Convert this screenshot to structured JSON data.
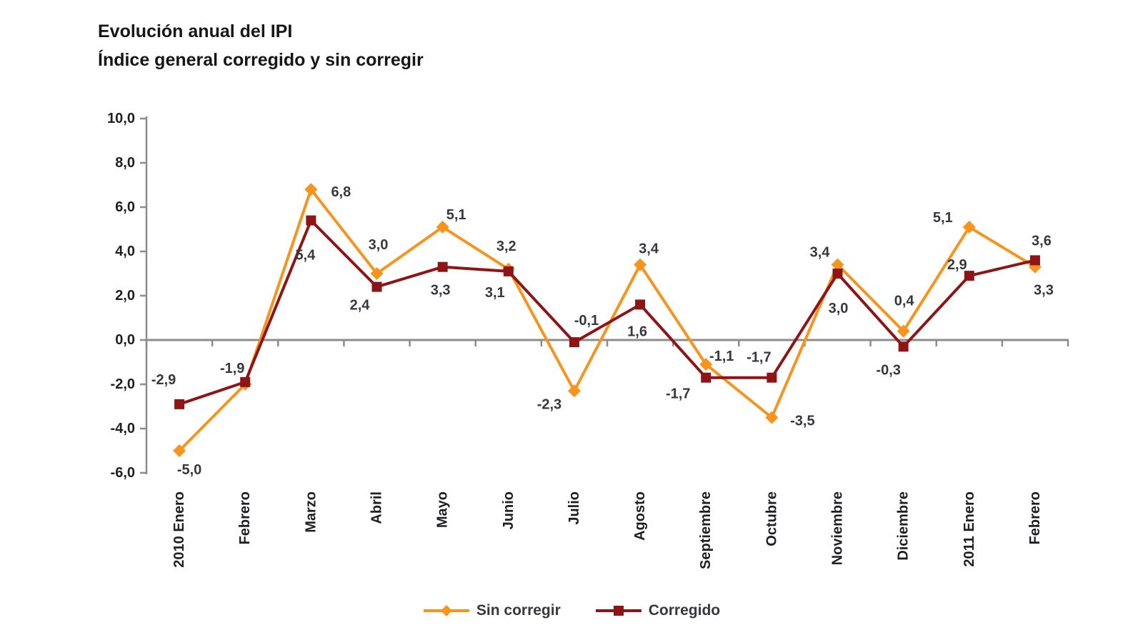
{
  "title": {
    "line1": "Evolución anual del IPI",
    "line2": "Índice general corregido y sin corregir"
  },
  "chart_data": {
    "type": "line",
    "title": "Evolución anual del IPI — Índice general corregido y sin corregir",
    "categories": [
      "2010 Enero",
      "Febrero",
      "Marzo",
      "Abril",
      "Mayo",
      "Junio",
      "Julio",
      "Agosto",
      "Septiembre",
      "Octubre",
      "Noviembre",
      "Diciembre",
      "2011 Enero",
      "Febrero"
    ],
    "ylim": [
      -6.0,
      10.0
    ],
    "y_axis": {
      "ticks": [
        10,
        8,
        6,
        4,
        2,
        0,
        -2,
        -4,
        -6
      ],
      "tick_labels": [
        "10,0",
        "8,0",
        "6,0",
        "4,0",
        "2,0",
        "0,0",
        "-2,0",
        "-4,0",
        "-6,0"
      ]
    },
    "grid": "off",
    "legend_position": "bottom",
    "series": [
      {
        "name": "Sin corregir",
        "color": "#F7941E",
        "marker": "diamond",
        "values": [
          -5.0,
          -2.0,
          6.8,
          3.0,
          5.1,
          3.2,
          -2.3,
          3.4,
          -1.1,
          -3.5,
          3.4,
          0.4,
          5.1,
          3.3
        ],
        "labels": [
          {
            "text": "-5,0",
            "dx": 14,
            "dy": 27
          },
          null,
          {
            "text": "6,8",
            "dx": 42,
            "dy": 4
          },
          {
            "text": "3,0",
            "dx": 2,
            "dy": -40
          },
          {
            "text": "5,1",
            "dx": 19,
            "dy": -17
          },
          {
            "text": "3,2",
            "dx": -3,
            "dy": -32
          },
          {
            "text": "-2,3",
            "dx": -35,
            "dy": 19
          },
          {
            "text": "3,4",
            "dx": 12,
            "dy": -22
          },
          {
            "text": "-1,1",
            "dx": 22,
            "dy": -11
          },
          {
            "text": "-3,5",
            "dx": 43,
            "dy": 5
          },
          {
            "text": "3,4",
            "dx": -25,
            "dy": -17
          },
          {
            "text": "0,4",
            "dx": 1,
            "dy": -42
          },
          {
            "text": "5,1",
            "dx": -37,
            "dy": -13
          },
          {
            "text": "3,3",
            "dx": 12,
            "dy": 33
          }
        ]
      },
      {
        "name": "Corregido",
        "color": "#8E1515",
        "marker": "square",
        "values": [
          -2.9,
          -1.9,
          5.4,
          2.4,
          3.3,
          3.1,
          -0.1,
          1.6,
          -1.7,
          -1.7,
          3.0,
          -0.3,
          2.9,
          3.6
        ],
        "labels": [
          {
            "text": "-2,9",
            "dx": -22,
            "dy": -34
          },
          {
            "text": "-1,9",
            "dx": -18,
            "dy": -19
          },
          {
            "text": "5,4",
            "dx": -8,
            "dy": 49
          },
          {
            "text": "2,4",
            "dx": -24,
            "dy": 26
          },
          {
            "text": "3,3",
            "dx": -3,
            "dy": 33
          },
          {
            "text": "3,1",
            "dx": -19,
            "dy": 30
          },
          {
            "text": "-0,1",
            "dx": 17,
            "dy": -30
          },
          {
            "text": "1,6",
            "dx": -4,
            "dy": 38
          },
          {
            "text": "-1,7",
            "dx": -39,
            "dy": 23
          },
          {
            "text": "-1,7",
            "dx": -18,
            "dy": -28
          },
          {
            "text": "3,0",
            "dx": 1,
            "dy": 49
          },
          {
            "text": "-0,3",
            "dx": -21,
            "dy": 33
          },
          {
            "text": "2,9",
            "dx": -17,
            "dy": -15
          },
          {
            "text": "3,6",
            "dx": 9,
            "dy": -27
          }
        ]
      }
    ]
  },
  "legend": {
    "item1": "Sin corregir",
    "item2": "Corregido"
  },
  "colors": {
    "axis": "#8C8C8C",
    "tick_text": "#1f1f23",
    "data_label_text": "#37373f",
    "title_text": "#161616",
    "background": "#ffffff"
  }
}
